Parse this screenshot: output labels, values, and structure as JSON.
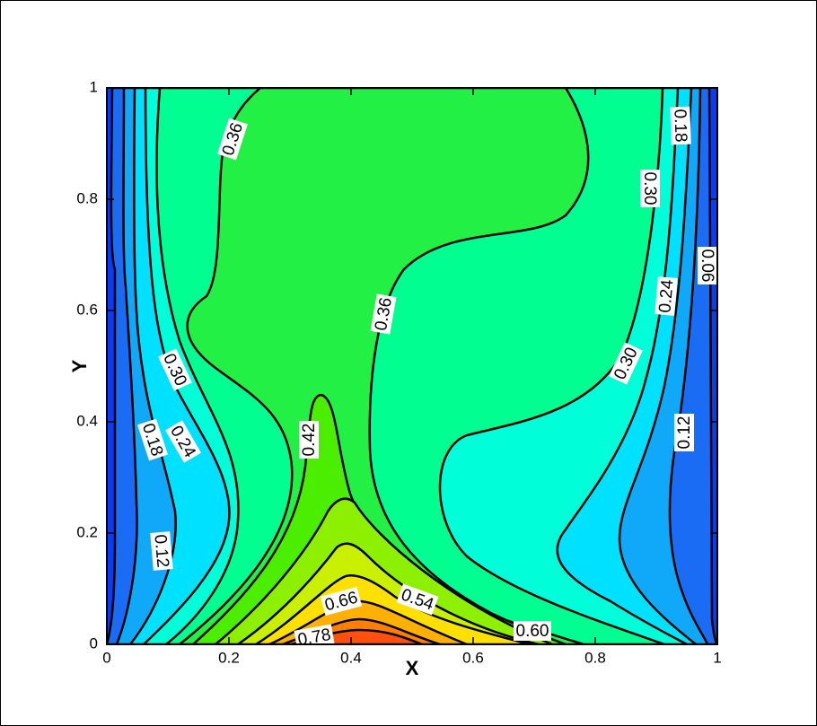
{
  "chart_data": {
    "type": "contour",
    "xlabel": "X",
    "ylabel": "Y",
    "xlim": [
      0,
      1
    ],
    "ylim": [
      0,
      1
    ],
    "xticks": [
      0,
      0.2,
      0.4,
      0.6,
      0.8,
      1
    ],
    "yticks": [
      0,
      0.2,
      0.4,
      0.6,
      0.8,
      1
    ],
    "levels": [
      0.06,
      0.12,
      0.18,
      0.24,
      {
        "value": 0.3,
        "label": "0.30"
      },
      0.36,
      0.42,
      0.48,
      0.54,
      {
        "value": 0.6,
        "label": "0.60"
      },
      0.66,
      0.72,
      0.78
    ],
    "colors": [
      "#0a3cf5",
      "#1a6cf5",
      "#10a8f8",
      "#00e0ff",
      "#00ffd8",
      "#00ff90",
      "#22f044",
      "#4cee00",
      "#8cf000",
      "#c8f000",
      "#ffe000",
      "#ffb000",
      "#ff8000",
      "#ff5010"
    ],
    "line_color": "#000000"
  }
}
